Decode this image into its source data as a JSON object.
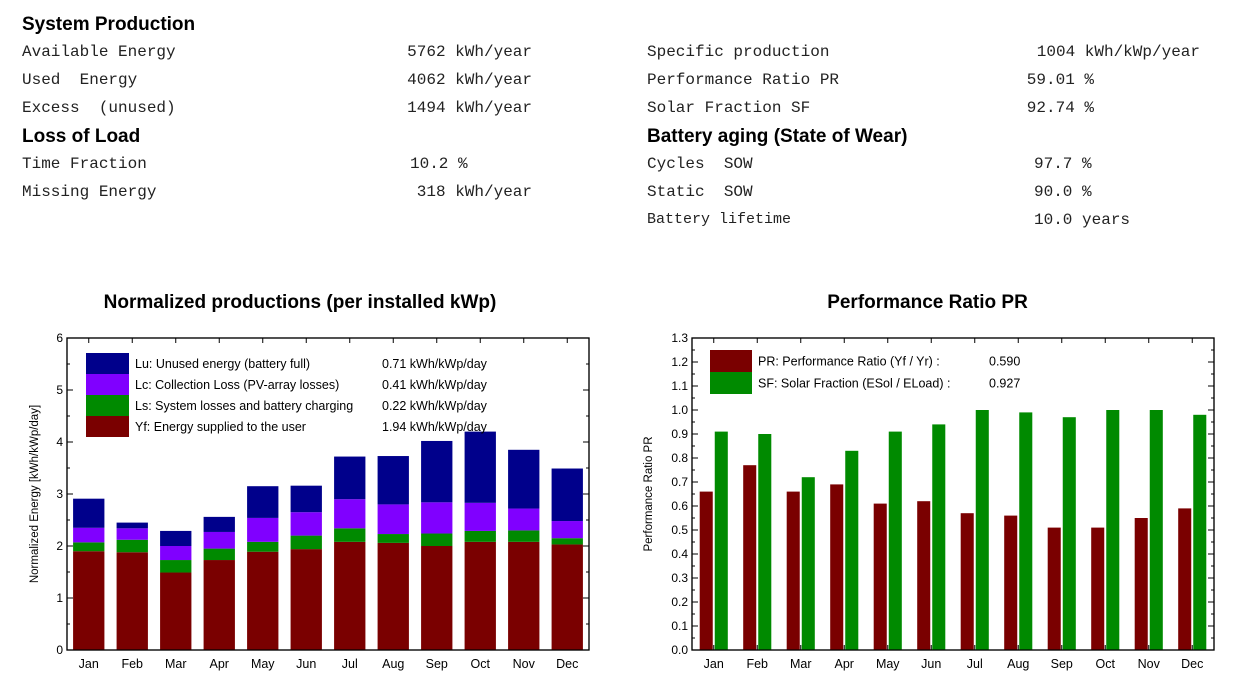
{
  "summary": {
    "system_production": {
      "title": "System Production",
      "rows": [
        {
          "label": "Available Energy",
          "value": "5762 kWh/year"
        },
        {
          "label": "Used  Energy",
          "value": "4062 kWh/year"
        },
        {
          "label": "Excess  (unused)",
          "value": "1494 kWh/year"
        }
      ]
    },
    "right_top": {
      "rows": [
        {
          "label": "Specific production",
          "value": "1004 kWh/kWp/year"
        },
        {
          "label": "Performance Ratio PR",
          "value": "59.01 %"
        },
        {
          "label": "Solar Fraction SF",
          "value": "92.74 %"
        }
      ]
    },
    "loss_of_load": {
      "title": "Loss of Load",
      "rows": [
        {
          "label": "Time Fraction",
          "value": "10.2 %"
        },
        {
          "label": "Missing Energy",
          "value": "318 kWh/year"
        }
      ]
    },
    "battery_aging": {
      "title": "Battery aging (State of Wear)",
      "rows": [
        {
          "label": "Cycles  SOW",
          "value": "97.7 %"
        },
        {
          "label": "Static  SOW",
          "value": "90.0 %"
        },
        {
          "label": "Battery lifetime",
          "value": "10.0 years"
        }
      ]
    }
  },
  "chart_data": [
    {
      "type": "bar",
      "stacked": true,
      "title": "Normalized productions (per installed kWp)",
      "xlabel": "",
      "ylabel": "Normalized Energy [kWh/kWp/day]",
      "ylim": [
        0,
        6
      ],
      "yticks": [
        "0",
        "1",
        "2",
        "3",
        "4",
        "5",
        "6"
      ],
      "categories": [
        "Jan",
        "Feb",
        "Mar",
        "Apr",
        "May",
        "Jun",
        "Jul",
        "Aug",
        "Sep",
        "Oct",
        "Nov",
        "Dec"
      ],
      "series": [
        {
          "name": "Yf: Energy supplied to the user",
          "color": "#7a0000",
          "values": [
            1.9,
            1.88,
            1.49,
            1.73,
            1.89,
            1.94,
            2.08,
            2.06,
            2.0,
            2.08,
            2.08,
            2.03
          ]
        },
        {
          "name": "Ls: System losses and battery charging",
          "color": "#008a00",
          "values": [
            0.17,
            0.24,
            0.24,
            0.22,
            0.19,
            0.26,
            0.26,
            0.17,
            0.24,
            0.21,
            0.22,
            0.12
          ]
        },
        {
          "name": "Lc: Collection Loss (PV-array losses)",
          "color": "#8000ff",
          "values": [
            0.28,
            0.22,
            0.27,
            0.32,
            0.46,
            0.45,
            0.56,
            0.57,
            0.6,
            0.54,
            0.42,
            0.33
          ]
        },
        {
          "name": "Lu: Unused energy (battery full)",
          "color": "#00008b",
          "values": [
            0.56,
            0.11,
            0.29,
            0.29,
            0.61,
            0.51,
            0.82,
            0.93,
            1.18,
            1.37,
            1.13,
            1.01
          ]
        }
      ],
      "legend": {
        "placement": "top-left",
        "entries": [
          {
            "label": "Lu: Unused energy (battery full)",
            "value": "0.71 kWh/kWp/day",
            "color": "#00008b"
          },
          {
            "label": "Lc: Collection Loss (PV-array losses)",
            "value": "0.41 kWh/kWp/day",
            "color": "#8000ff"
          },
          {
            "label": "Ls: System losses and battery charging",
            "value": "0.22 kWh/kWp/day",
            "color": "#008a00"
          },
          {
            "label": "Yf: Energy supplied to the user",
            "value": "1.94 kWh/kWp/day",
            "color": "#7a0000"
          }
        ]
      }
    },
    {
      "type": "bar",
      "stacked": false,
      "title": "Performance Ratio PR",
      "xlabel": "",
      "ylabel": "Performance Ratio PR",
      "ylim": [
        0,
        1.3
      ],
      "yticks": [
        "0.0",
        "0.1",
        "0.2",
        "0.3",
        "0.4",
        "0.5",
        "0.6",
        "0.7",
        "0.8",
        "0.9",
        "1.0",
        "1.1",
        "1.2",
        "1.3"
      ],
      "categories": [
        "Jan",
        "Feb",
        "Mar",
        "Apr",
        "May",
        "Jun",
        "Jul",
        "Aug",
        "Sep",
        "Oct",
        "Nov",
        "Dec"
      ],
      "series": [
        {
          "name": "PR: Performance Ratio (Yf / Yr) :",
          "color": "#7a0000",
          "values": [
            0.66,
            0.77,
            0.66,
            0.69,
            0.61,
            0.62,
            0.57,
            0.56,
            0.51,
            0.51,
            0.55,
            0.59
          ]
        },
        {
          "name": "SF: Solar Fraction (ESol / ELoad) :",
          "color": "#008a00",
          "values": [
            0.91,
            0.9,
            0.72,
            0.83,
            0.91,
            0.94,
            1.0,
            0.99,
            0.97,
            1.0,
            1.0,
            0.98
          ]
        }
      ],
      "legend": {
        "placement": "top-left",
        "entries": [
          {
            "label": "PR: Performance Ratio (Yf / Yr) :",
            "value": "0.590",
            "color": "#7a0000"
          },
          {
            "label": "SF: Solar Fraction (ESol / ELoad) :",
            "value": "0.927",
            "color": "#008a00"
          }
        ]
      }
    }
  ]
}
